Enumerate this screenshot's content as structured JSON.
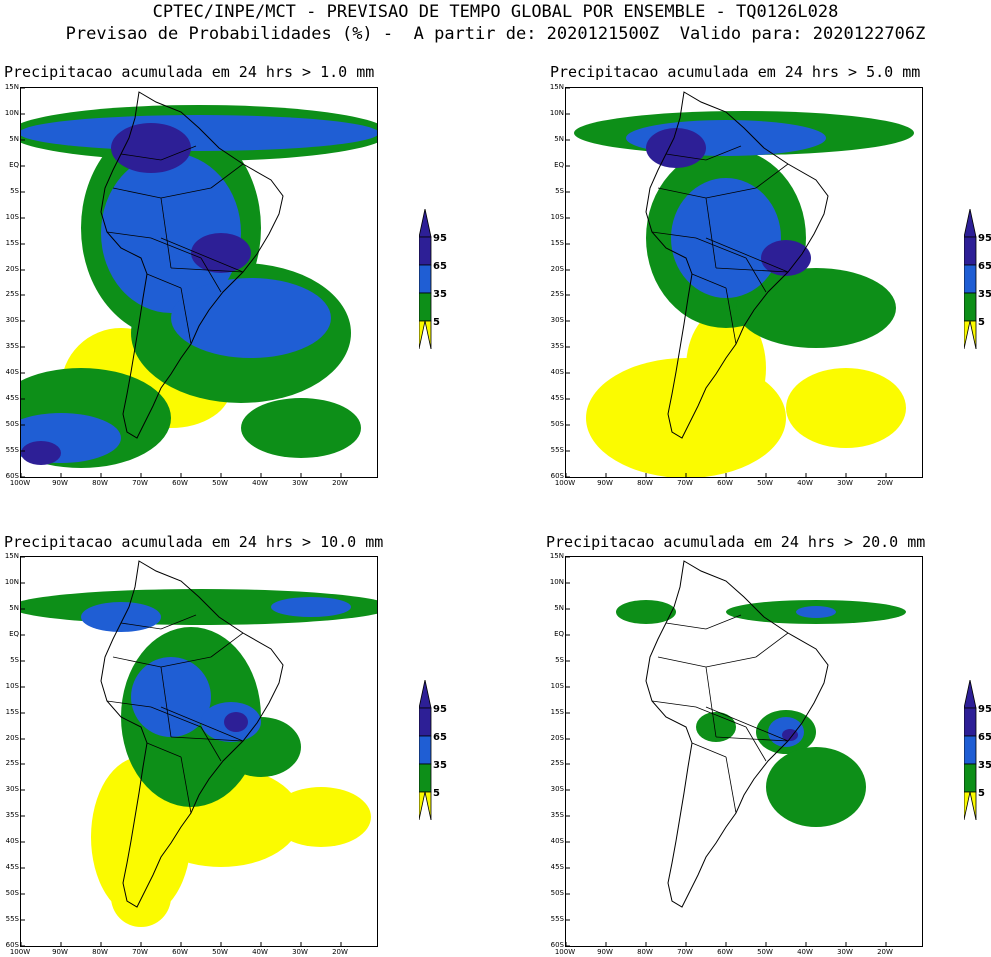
{
  "header": {
    "line1": "CPTEC/INPE/MCT - PREVISAO DE TEMPO GLOBAL POR ENSEMBLE - TQ0126L028",
    "line2": "Previsao de Probabilidades (%) -  A partir de: 2020121500Z  Valido para: 2020122706Z"
  },
  "axis": {
    "lat_labels": [
      "15N",
      "10N",
      "5N",
      "EQ",
      "5S",
      "10S",
      "15S",
      "20S",
      "25S",
      "30S",
      "35S",
      "40S",
      "45S",
      "50S",
      "55S",
      "60S"
    ],
    "lon_labels": [
      "100W",
      "90W",
      "80W",
      "70W",
      "60W",
      "50W",
      "40W",
      "30W",
      "20W"
    ]
  },
  "legend": {
    "levels": [
      "95",
      "65",
      "35",
      "5"
    ],
    "colors": {
      "c95": "#2d1f96",
      "c65": "#1f5ed4",
      "c35": "#0d8f18",
      "c5": "#fbfb00"
    }
  },
  "panels": [
    {
      "id": "p1",
      "title": "Precipitacao acumulada em 24 hrs > 1.0 mm"
    },
    {
      "id": "p2",
      "title": "Precipitacao acumulada em 24 hrs > 5.0 mm"
    },
    {
      "id": "p3",
      "title": "Precipitacao acumulada em 24 hrs > 10.0 mm"
    },
    {
      "id": "p4",
      "title": "Precipitacao acumulada em 24 hrs > 20.0 mm"
    }
  ]
}
